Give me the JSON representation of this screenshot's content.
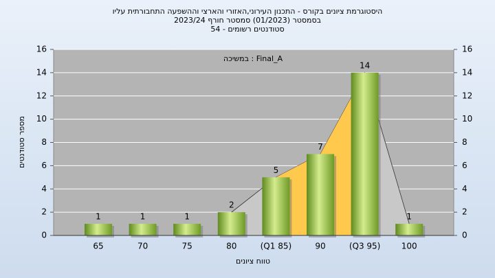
{
  "chart_data": {
    "type": "bar",
    "title": [
      "היסטוגרמת ציונים בקורס - התכנון העירוני,האזורי והארצי וההשפעה התחבורתית עליו",
      "בסמסטר  (01/2023)  סמסטר חורף  2023/24",
      "סטודנטים רשומים - 54"
    ],
    "annotation": "Final_A : במשיכה",
    "xlabel": "טווח ציונים",
    "ylabel": "מספר סטודנטים",
    "categories": [
      "65",
      "70",
      "75",
      "80",
      "(Q1 85)",
      "90",
      "(Q3 95)",
      "100"
    ],
    "values": [
      1,
      1,
      1,
      2,
      5,
      7,
      14,
      1
    ],
    "color": "#8db43c",
    "ylim": [
      0,
      16
    ],
    "yticks": [
      0,
      2,
      4,
      6,
      8,
      10,
      12,
      14,
      16
    ],
    "y2lim": [
      0,
      16
    ],
    "y2ticks": [
      0,
      2,
      4,
      6,
      8,
      10,
      12,
      14,
      16
    ],
    "grid": true
  }
}
